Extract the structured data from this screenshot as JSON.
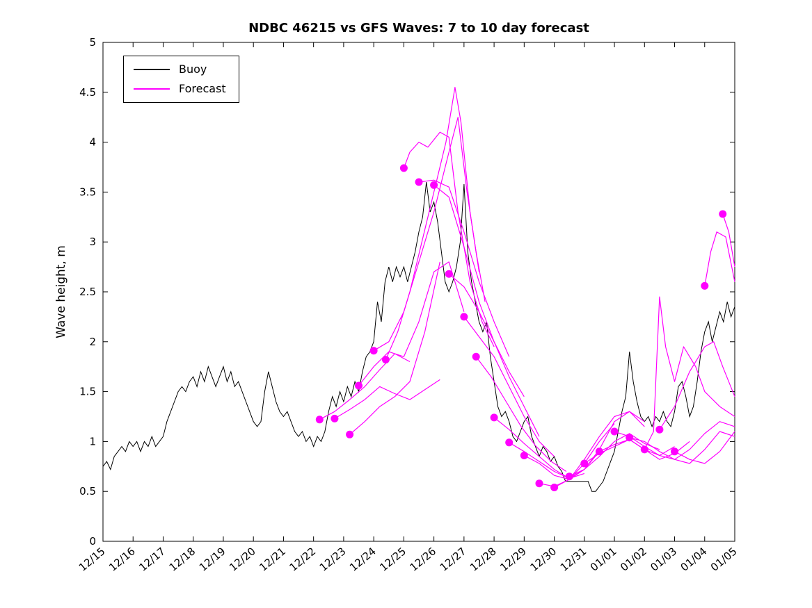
{
  "chart_data": {
    "type": "line",
    "title": "NDBC 46215 vs GFS Waves: 7 to 10 day forecast",
    "xlabel": "",
    "ylabel": "Wave height, m",
    "ylim": [
      0,
      5
    ],
    "yticks": [
      0,
      0.5,
      1,
      1.5,
      2,
      2.5,
      3,
      3.5,
      4,
      4.5,
      5
    ],
    "y_tick_labels": [
      "0",
      "0.5",
      "1",
      "1.5",
      "2",
      "2.5",
      "3",
      "3.5",
      "4",
      "4.5",
      "5"
    ],
    "x_range_days": [
      0,
      21
    ],
    "x_tick_labels": [
      "12/15",
      "12/16",
      "12/17",
      "12/18",
      "12/19",
      "12/20",
      "12/21",
      "12/22",
      "12/23",
      "12/24",
      "12/25",
      "12/26",
      "12/27",
      "12/28",
      "12/29",
      "12/30",
      "12/31",
      "01/01",
      "01/02",
      "01/03",
      "01/04",
      "01/05"
    ],
    "grid": false,
    "legend": {
      "position": "top-left",
      "entries": [
        {
          "label": "Buoy",
          "color": "#000000"
        },
        {
          "label": "Forecast",
          "color": "#FF00FF"
        }
      ]
    },
    "series": {
      "buoy": {
        "name": "Buoy",
        "color": "#000000",
        "start_day": 0,
        "dt": 0.125,
        "values": [
          0.75,
          0.8,
          0.72,
          0.85,
          0.9,
          0.95,
          0.9,
          1.0,
          0.95,
          1.0,
          0.9,
          1.0,
          0.95,
          1.05,
          0.95,
          1.0,
          1.05,
          1.2,
          1.3,
          1.4,
          1.5,
          1.55,
          1.5,
          1.6,
          1.65,
          1.55,
          1.7,
          1.6,
          1.75,
          1.65,
          1.55,
          1.65,
          1.75,
          1.6,
          1.7,
          1.55,
          1.6,
          1.5,
          1.4,
          1.3,
          1.2,
          1.15,
          1.2,
          1.5,
          1.7,
          1.55,
          1.4,
          1.3,
          1.25,
          1.3,
          1.2,
          1.1,
          1.05,
          1.1,
          1.0,
          1.05,
          0.95,
          1.05,
          1.0,
          1.1,
          1.3,
          1.45,
          1.35,
          1.5,
          1.4,
          1.55,
          1.45,
          1.6,
          1.5,
          1.7,
          1.85,
          1.9,
          2.0,
          2.4,
          2.2,
          2.6,
          2.75,
          2.6,
          2.75,
          2.65,
          2.75,
          2.6,
          2.75,
          2.9,
          3.1,
          3.25,
          3.6,
          3.3,
          3.4,
          3.2,
          2.9,
          2.6,
          2.5,
          2.6,
          2.75,
          3.0,
          3.58,
          2.9,
          2.6,
          2.4,
          2.2,
          2.1,
          2.2,
          1.85,
          1.6,
          1.35,
          1.25,
          1.3,
          1.2,
          1.05,
          1.0,
          1.1,
          1.2,
          1.25,
          1.05,
          0.95,
          0.85,
          0.95,
          0.9,
          0.8,
          0.85,
          0.75,
          0.7,
          0.6,
          0.6,
          0.6,
          0.6,
          0.6,
          0.6,
          0.6,
          0.5,
          0.5,
          0.55,
          0.6,
          0.7,
          0.8,
          0.9,
          1.1,
          1.3,
          1.45,
          1.9,
          1.6,
          1.4,
          1.25,
          1.2,
          1.25,
          1.15,
          1.25,
          1.2,
          1.3,
          1.2,
          1.15,
          1.3,
          1.55,
          1.6,
          1.45,
          1.25,
          1.35,
          1.6,
          1.9,
          2.1,
          2.2,
          2.0,
          2.15,
          2.3,
          2.2,
          2.4,
          2.25,
          2.35
        ]
      },
      "forecast": {
        "name": "Forecast",
        "color": "#FF00FF",
        "segments": [
          [
            [
              7.2,
              1.22
            ],
            [
              7.7,
              1.3
            ],
            [
              8.2,
              1.42
            ],
            [
              8.7,
              1.55
            ],
            [
              9.2,
              1.72
            ],
            [
              9.7,
              1.88
            ],
            [
              10.2,
              1.8
            ]
          ],
          [
            [
              7.7,
              1.23
            ],
            [
              8.2,
              1.32
            ],
            [
              8.7,
              1.42
            ],
            [
              9.2,
              1.55
            ],
            [
              9.7,
              1.48
            ],
            [
              10.2,
              1.42
            ],
            [
              10.7,
              1.52
            ],
            [
              11.2,
              1.62
            ]
          ],
          [
            [
              8.2,
              1.07
            ],
            [
              8.7,
              1.2
            ],
            [
              9.2,
              1.35
            ],
            [
              9.7,
              1.45
            ],
            [
              10.2,
              1.6
            ],
            [
              10.7,
              2.1
            ],
            [
              11.2,
              2.8
            ]
          ],
          [
            [
              8.5,
              1.56
            ],
            [
              9.0,
              1.75
            ],
            [
              9.5,
              1.9
            ],
            [
              10.0,
              1.85
            ],
            [
              10.5,
              2.2
            ],
            [
              11.0,
              2.7
            ],
            [
              11.5,
              2.8
            ],
            [
              12.0,
              2.3
            ]
          ],
          [
            [
              9.0,
              1.91
            ],
            [
              9.5,
              2.0
            ],
            [
              10.0,
              2.3
            ],
            [
              10.5,
              2.8
            ],
            [
              11.0,
              3.3
            ],
            [
              11.5,
              3.9
            ],
            [
              11.8,
              4.25
            ],
            [
              12.1,
              3.5
            ],
            [
              12.4,
              2.9
            ],
            [
              12.7,
              2.4
            ]
          ],
          [
            [
              9.4,
              1.82
            ],
            [
              9.8,
              2.1
            ],
            [
              10.2,
              2.5
            ],
            [
              10.6,
              3.0
            ],
            [
              11.0,
              3.5
            ],
            [
              11.4,
              4.0
            ],
            [
              11.7,
              4.55
            ],
            [
              11.9,
              4.2
            ],
            [
              12.2,
              3.3
            ],
            [
              12.5,
              2.7
            ]
          ],
          [
            [
              10.0,
              3.74
            ],
            [
              10.2,
              3.9
            ],
            [
              10.5,
              4.0
            ],
            [
              10.8,
              3.95
            ],
            [
              11.2,
              4.1
            ],
            [
              11.5,
              4.05
            ],
            [
              11.8,
              3.3
            ],
            [
              12.2,
              2.6
            ],
            [
              12.6,
              2.2
            ],
            [
              13.0,
              1.95
            ]
          ],
          [
            [
              10.5,
              3.6
            ],
            [
              11.0,
              3.62
            ],
            [
              11.5,
              3.55
            ],
            [
              12.0,
              3.1
            ],
            [
              12.5,
              2.6
            ],
            [
              13.0,
              2.2
            ],
            [
              13.5,
              1.85
            ]
          ],
          [
            [
              11.0,
              3.57
            ],
            [
              11.5,
              3.45
            ],
            [
              12.0,
              2.95
            ],
            [
              12.5,
              2.4
            ],
            [
              13.0,
              2.0
            ],
            [
              13.5,
              1.7
            ],
            [
              14.0,
              1.45
            ]
          ],
          [
            [
              11.5,
              2.68
            ],
            [
              12.0,
              2.55
            ],
            [
              12.5,
              2.3
            ],
            [
              13.0,
              2.0
            ],
            [
              13.5,
              1.65
            ],
            [
              14.0,
              1.35
            ],
            [
              14.5,
              1.05
            ]
          ],
          [
            [
              12.0,
              2.25
            ],
            [
              12.5,
              2.05
            ],
            [
              13.0,
              1.85
            ],
            [
              13.5,
              1.55
            ],
            [
              14.0,
              1.25
            ],
            [
              14.5,
              1.0
            ],
            [
              15.0,
              0.85
            ]
          ],
          [
            [
              12.4,
              1.85
            ],
            [
              12.9,
              1.65
            ],
            [
              13.4,
              1.4
            ],
            [
              13.9,
              1.15
            ],
            [
              14.4,
              0.95
            ],
            [
              14.9,
              0.8
            ],
            [
              15.4,
              0.7
            ]
          ],
          [
            [
              13.0,
              1.24
            ],
            [
              13.5,
              1.12
            ],
            [
              14.0,
              0.98
            ],
            [
              14.5,
              0.85
            ],
            [
              15.0,
              0.72
            ],
            [
              15.5,
              0.63
            ],
            [
              16.0,
              0.68
            ]
          ],
          [
            [
              13.5,
              0.99
            ],
            [
              14.0,
              0.9
            ],
            [
              14.5,
              0.8
            ],
            [
              15.0,
              0.7
            ],
            [
              15.5,
              0.63
            ],
            [
              16.0,
              0.72
            ],
            [
              16.5,
              0.9
            ]
          ],
          [
            [
              14.0,
              0.86
            ],
            [
              14.5,
              0.78
            ],
            [
              15.0,
              0.66
            ],
            [
              15.5,
              0.62
            ],
            [
              16.0,
              0.78
            ],
            [
              16.5,
              1.0
            ],
            [
              17.0,
              1.18
            ]
          ],
          [
            [
              14.5,
              0.58
            ],
            [
              15.0,
              0.55
            ],
            [
              15.5,
              0.62
            ],
            [
              16.0,
              0.82
            ],
            [
              16.5,
              1.05
            ],
            [
              17.0,
              1.25
            ],
            [
              17.5,
              1.3
            ],
            [
              18.0,
              1.2
            ]
          ],
          [
            [
              15.0,
              0.54
            ],
            [
              15.5,
              0.62
            ],
            [
              16.0,
              0.72
            ],
            [
              16.5,
              0.92
            ],
            [
              17.0,
              1.2
            ],
            [
              17.5,
              1.3
            ],
            [
              18.0,
              1.15
            ]
          ],
          [
            [
              15.5,
              0.65
            ],
            [
              16.0,
              0.72
            ],
            [
              16.5,
              0.85
            ],
            [
              17.0,
              1.0
            ],
            [
              17.5,
              1.08
            ],
            [
              18.0,
              0.98
            ],
            [
              18.5,
              0.92
            ]
          ],
          [
            [
              16.0,
              0.78
            ],
            [
              16.5,
              0.88
            ],
            [
              17.0,
              0.95
            ],
            [
              17.5,
              1.02
            ],
            [
              18.0,
              0.92
            ],
            [
              18.5,
              0.86
            ],
            [
              19.0,
              0.95
            ]
          ],
          [
            [
              16.5,
              0.9
            ],
            [
              17.0,
              0.97
            ],
            [
              17.5,
              1.02
            ],
            [
              18.0,
              0.92
            ],
            [
              18.5,
              0.82
            ],
            [
              19.0,
              0.88
            ],
            [
              19.5,
              1.0
            ]
          ],
          [
            [
              17.0,
              1.1
            ],
            [
              17.5,
              1.05
            ],
            [
              18.0,
              0.95
            ],
            [
              18.5,
              0.86
            ],
            [
              19.0,
              0.82
            ],
            [
              19.5,
              0.92
            ],
            [
              20.0,
              1.08
            ],
            [
              20.5,
              1.2
            ],
            [
              21.0,
              1.15
            ]
          ],
          [
            [
              17.5,
              1.04
            ],
            [
              18.0,
              1.0
            ],
            [
              18.5,
              0.9
            ],
            [
              19.0,
              0.82
            ],
            [
              19.5,
              0.78
            ],
            [
              20.0,
              0.92
            ],
            [
              20.5,
              1.1
            ],
            [
              21.0,
              1.05
            ]
          ],
          [
            [
              18.0,
              0.92
            ],
            [
              18.3,
              1.1
            ],
            [
              18.5,
              2.45
            ],
            [
              18.7,
              1.95
            ],
            [
              19.0,
              1.6
            ],
            [
              19.3,
              1.95
            ],
            [
              19.7,
              1.75
            ],
            [
              20.0,
              1.5
            ],
            [
              20.5,
              1.35
            ],
            [
              21.0,
              1.25
            ]
          ],
          [
            [
              18.5,
              1.12
            ],
            [
              19.0,
              1.35
            ],
            [
              19.5,
              1.7
            ],
            [
              20.0,
              1.95
            ],
            [
              20.3,
              2.0
            ],
            [
              20.6,
              1.75
            ],
            [
              21.0,
              1.45
            ]
          ],
          [
            [
              19.0,
              0.9
            ],
            [
              19.5,
              0.82
            ],
            [
              20.0,
              0.78
            ],
            [
              20.5,
              0.9
            ],
            [
              21.0,
              1.1
            ]
          ],
          [
            [
              20.0,
              2.56
            ],
            [
              20.2,
              2.9
            ],
            [
              20.4,
              3.1
            ],
            [
              20.7,
              3.05
            ],
            [
              21.0,
              2.6
            ]
          ],
          [
            [
              20.6,
              3.28
            ],
            [
              20.8,
              3.1
            ],
            [
              21.0,
              2.75
            ]
          ]
        ]
      },
      "markers": {
        "name": "Forecast markers",
        "color": "#FF00FF",
        "points": [
          [
            7.2,
            1.22
          ],
          [
            7.7,
            1.23
          ],
          [
            8.2,
            1.07
          ],
          [
            8.5,
            1.56
          ],
          [
            9.0,
            1.91
          ],
          [
            9.4,
            1.82
          ],
          [
            10.0,
            3.74
          ],
          [
            10.5,
            3.6
          ],
          [
            11.0,
            3.57
          ],
          [
            11.5,
            2.68
          ],
          [
            12.0,
            2.25
          ],
          [
            12.4,
            1.85
          ],
          [
            13.0,
            1.24
          ],
          [
            13.5,
            0.99
          ],
          [
            14.0,
            0.86
          ],
          [
            14.5,
            0.58
          ],
          [
            15.0,
            0.54
          ],
          [
            15.5,
            0.65
          ],
          [
            16.0,
            0.78
          ],
          [
            16.5,
            0.9
          ],
          [
            17.0,
            1.1
          ],
          [
            17.5,
            1.04
          ],
          [
            18.0,
            0.92
          ],
          [
            18.5,
            1.12
          ],
          [
            19.0,
            0.9
          ],
          [
            20.0,
            2.56
          ],
          [
            20.6,
            3.28
          ]
        ]
      }
    }
  }
}
